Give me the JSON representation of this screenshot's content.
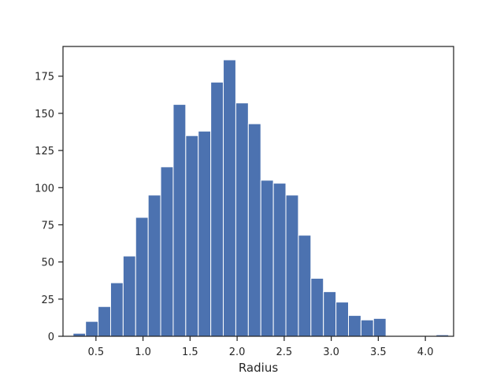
{
  "chart_data": {
    "type": "bar",
    "subtype": "histogram",
    "title": "",
    "xlabel": "Radius",
    "ylabel": "",
    "xlim": [
      0.15,
      4.3
    ],
    "ylim": [
      0,
      195
    ],
    "grid": false,
    "bar_color": "#4c72b0",
    "edge_color": "#ffffff",
    "bin_width": 0.133,
    "bin_left_edges": [
      0.257,
      0.39,
      0.523,
      0.656,
      0.789,
      0.922,
      1.055,
      1.188,
      1.321,
      1.454,
      1.587,
      1.72,
      1.853,
      1.986,
      2.119,
      2.252,
      2.385,
      2.518,
      2.651,
      2.784,
      2.917,
      3.05,
      3.183,
      3.316,
      3.449,
      3.582,
      3.715,
      3.848,
      3.981,
      4.114
    ],
    "values": [
      2,
      10,
      20,
      36,
      54,
      80,
      95,
      114,
      156,
      135,
      138,
      171,
      186,
      157,
      143,
      105,
      103,
      95,
      68,
      39,
      30,
      23,
      14,
      11,
      12,
      0,
      0,
      0,
      0,
      1
    ],
    "x_ticks": [
      {
        "value": 0.5,
        "label": "0.5"
      },
      {
        "value": 1.0,
        "label": "1.0"
      },
      {
        "value": 1.5,
        "label": "1.5"
      },
      {
        "value": 2.0,
        "label": "2.0"
      },
      {
        "value": 2.5,
        "label": "2.5"
      },
      {
        "value": 3.0,
        "label": "3.0"
      },
      {
        "value": 3.5,
        "label": "3.5"
      },
      {
        "value": 4.0,
        "label": "4.0"
      }
    ],
    "y_ticks": [
      {
        "value": 0,
        "label": "0"
      },
      {
        "value": 25,
        "label": "25"
      },
      {
        "value": 50,
        "label": "50"
      },
      {
        "value": 75,
        "label": "75"
      },
      {
        "value": 100,
        "label": "100"
      },
      {
        "value": 125,
        "label": "125"
      },
      {
        "value": 150,
        "label": "150"
      },
      {
        "value": 175,
        "label": "175"
      }
    ]
  }
}
